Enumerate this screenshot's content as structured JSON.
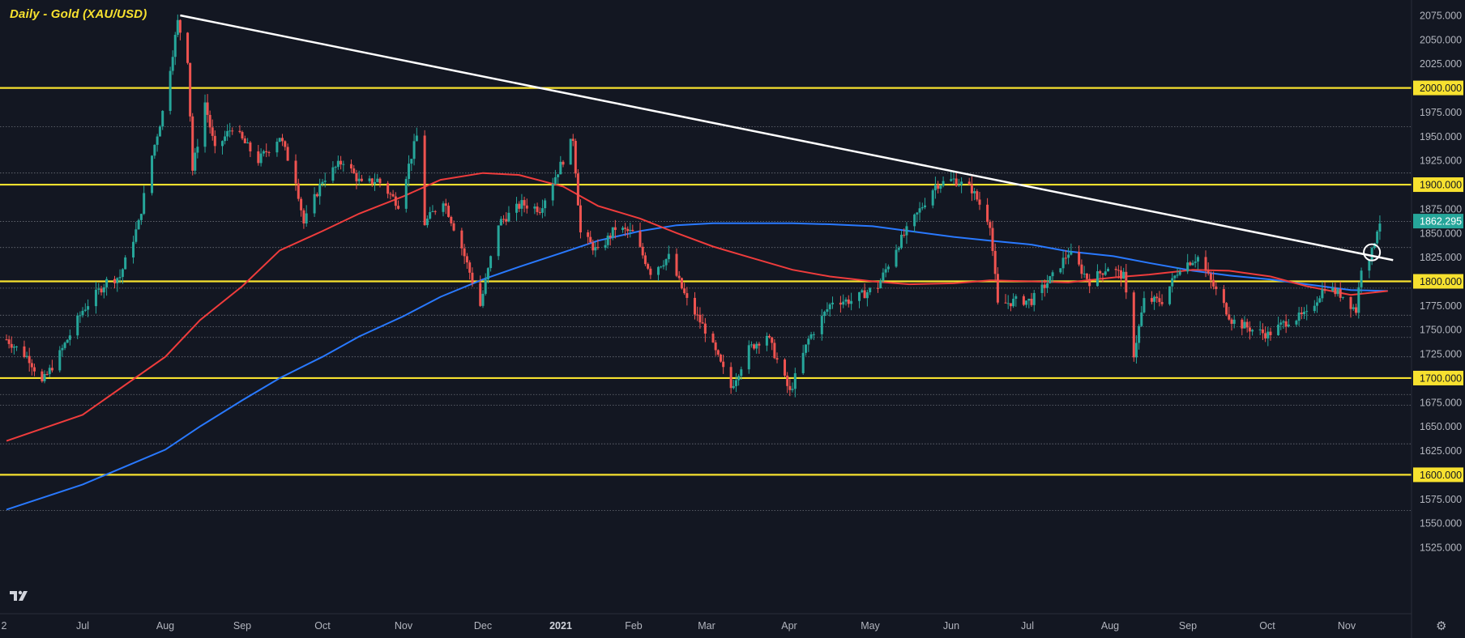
{
  "title": "Daily - Gold (XAU/USD)",
  "colors": {
    "background": "#131722",
    "up": "#26a69a",
    "down": "#ef5350",
    "ma_short": "#ef3c3c",
    "ma_long": "#2979ff",
    "support": "#f7e12f",
    "trendline": "#ffffff",
    "grid_dotted": "#b2b5be",
    "price_label": "#26a69a"
  },
  "icons": {
    "logo": "tradingview-logo-icon",
    "settings": "gear-icon"
  },
  "chart_data": {
    "type": "candlestick",
    "title": "Daily - Gold (XAU/USD)",
    "y_axis": {
      "ylim": [
        1512,
        2090
      ],
      "ticks": [
        "1525.000",
        "1550.000",
        "1575.000",
        "1600.000",
        "1625.000",
        "1650.000",
        "1675.000",
        "1700.000",
        "1725.000",
        "1750.000",
        "1775.000",
        "1800.000",
        "1825.000",
        "1850.000",
        "1875.000",
        "1900.000",
        "1925.000",
        "1950.000",
        "1975.000",
        "2000.000",
        "2025.000",
        "2050.000",
        "2075.000"
      ]
    },
    "x_axis": {
      "ticks": [
        "2",
        "Jul",
        "Aug",
        "Sep",
        "Oct",
        "Nov",
        "Dec",
        "2021",
        "Feb",
        "Mar",
        "Apr",
        "May",
        "Jun",
        "Jul",
        "Aug",
        "Sep",
        "Oct",
        "Nov"
      ]
    },
    "last_price": "1862.295",
    "horizontal_levels": [
      2000,
      1900,
      1800,
      1700,
      1600
    ],
    "dotted_levels": [
      1960,
      1912,
      1862,
      1835,
      1793,
      1765,
      1753,
      1742,
      1722,
      1683,
      1672,
      1632,
      1563
    ],
    "trendline": {
      "start": {
        "date": "2020-08-07",
        "price": 2075
      },
      "end": {
        "date": "2021-11-17",
        "price": 1822
      }
    },
    "breakout_marker": {
      "date": "2021-11-09",
      "price": 1830
    },
    "ma_short_path": [
      [
        "2020-06-01",
        1635
      ],
      [
        "2020-07-01",
        1662
      ],
      [
        "2020-08-01",
        1722
      ],
      [
        "2020-08-15",
        1760
      ],
      [
        "2020-09-01",
        1795
      ],
      [
        "2020-09-15",
        1832
      ],
      [
        "2020-10-01",
        1852
      ],
      [
        "2020-10-15",
        1870
      ],
      [
        "2020-11-01",
        1888
      ],
      [
        "2020-11-15",
        1905
      ],
      [
        "2020-12-01",
        1912
      ],
      [
        "2020-12-15",
        1910
      ],
      [
        "2021-01-01",
        1898
      ],
      [
        "2021-01-15",
        1878
      ],
      [
        "2021-02-01",
        1865
      ],
      [
        "2021-02-15",
        1850
      ],
      [
        "2021-03-01",
        1836
      ],
      [
        "2021-03-15",
        1825
      ],
      [
        "2021-04-01",
        1812
      ],
      [
        "2021-04-15",
        1805
      ],
      [
        "2021-05-01",
        1800
      ],
      [
        "2021-05-15",
        1797
      ],
      [
        "2021-06-01",
        1798
      ],
      [
        "2021-06-15",
        1801
      ],
      [
        "2021-07-01",
        1800
      ],
      [
        "2021-07-15",
        1799
      ],
      [
        "2021-08-01",
        1804
      ],
      [
        "2021-08-15",
        1807
      ],
      [
        "2021-09-01",
        1812
      ],
      [
        "2021-09-15",
        1811
      ],
      [
        "2021-10-01",
        1805
      ],
      [
        "2021-10-15",
        1795
      ],
      [
        "2021-11-01",
        1786
      ],
      [
        "2021-11-15",
        1790
      ]
    ],
    "ma_long_path": [
      [
        "2020-06-01",
        1564
      ],
      [
        "2020-07-01",
        1590
      ],
      [
        "2020-08-01",
        1626
      ],
      [
        "2020-08-15",
        1650
      ],
      [
        "2020-09-01",
        1677
      ],
      [
        "2020-09-15",
        1700
      ],
      [
        "2020-10-01",
        1722
      ],
      [
        "2020-10-15",
        1743
      ],
      [
        "2020-11-01",
        1764
      ],
      [
        "2020-11-15",
        1784
      ],
      [
        "2020-12-01",
        1802
      ],
      [
        "2020-12-15",
        1815
      ],
      [
        "2021-01-01",
        1830
      ],
      [
        "2021-01-15",
        1842
      ],
      [
        "2021-02-01",
        1852
      ],
      [
        "2021-02-15",
        1858
      ],
      [
        "2021-03-01",
        1860
      ],
      [
        "2021-03-15",
        1860
      ],
      [
        "2021-04-01",
        1860
      ],
      [
        "2021-04-15",
        1859
      ],
      [
        "2021-05-01",
        1857
      ],
      [
        "2021-05-15",
        1852
      ],
      [
        "2021-06-01",
        1846
      ],
      [
        "2021-06-15",
        1842
      ],
      [
        "2021-07-01",
        1838
      ],
      [
        "2021-07-15",
        1831
      ],
      [
        "2021-08-01",
        1826
      ],
      [
        "2021-08-15",
        1819
      ],
      [
        "2021-09-01",
        1811
      ],
      [
        "2021-09-15",
        1806
      ],
      [
        "2021-10-01",
        1802
      ],
      [
        "2021-10-15",
        1797
      ],
      [
        "2021-11-01",
        1791
      ],
      [
        "2021-11-15",
        1790
      ]
    ],
    "price_path": [
      [
        "2020-06-01",
        1740
      ],
      [
        "2020-06-10",
        1720
      ],
      [
        "2020-06-15",
        1695
      ],
      [
        "2020-06-22",
        1725
      ],
      [
        "2020-07-01",
        1770
      ],
      [
        "2020-07-10",
        1800
      ],
      [
        "2020-07-15",
        1805
      ],
      [
        "2020-07-22",
        1860
      ],
      [
        "2020-07-27",
        1930
      ],
      [
        "2020-07-31",
        1975
      ],
      [
        "2020-08-06",
        2068
      ],
      [
        "2020-08-10",
        2030
      ],
      [
        "2020-08-12",
        1915
      ],
      [
        "2020-08-17",
        1985
      ],
      [
        "2020-08-21",
        1935
      ],
      [
        "2020-08-28",
        1960
      ],
      [
        "2020-09-07",
        1925
      ],
      [
        "2020-09-15",
        1950
      ],
      [
        "2020-09-21",
        1905
      ],
      [
        "2020-09-24",
        1860
      ],
      [
        "2020-10-01",
        1905
      ],
      [
        "2020-10-09",
        1925
      ],
      [
        "2020-10-16",
        1900
      ],
      [
        "2020-10-22",
        1905
      ],
      [
        "2020-10-30",
        1880
      ],
      [
        "2020-11-06",
        1950
      ],
      [
        "2020-11-09",
        1860
      ],
      [
        "2020-11-16",
        1885
      ],
      [
        "2020-11-23",
        1835
      ],
      [
        "2020-11-30",
        1775
      ],
      [
        "2020-12-07",
        1860
      ],
      [
        "2020-12-16",
        1880
      ],
      [
        "2020-12-23",
        1875
      ],
      [
        "2021-01-05",
        1948
      ],
      [
        "2021-01-08",
        1850
      ],
      [
        "2021-01-15",
        1830
      ],
      [
        "2021-01-22",
        1855
      ],
      [
        "2021-01-29",
        1850
      ],
      [
        "2021-02-05",
        1810
      ],
      [
        "2021-02-12",
        1825
      ],
      [
        "2021-02-19",
        1780
      ],
      [
        "2021-02-26",
        1750
      ],
      [
        "2021-03-08",
        1690
      ],
      [
        "2021-03-15",
        1730
      ],
      [
        "2021-03-22",
        1745
      ],
      [
        "2021-03-31",
        1685
      ],
      [
        "2021-04-07",
        1740
      ],
      [
        "2021-04-16",
        1780
      ],
      [
        "2021-04-23",
        1780
      ],
      [
        "2021-05-03",
        1795
      ],
      [
        "2021-05-10",
        1835
      ],
      [
        "2021-05-17",
        1865
      ],
      [
        "2021-05-25",
        1900
      ],
      [
        "2021-06-01",
        1905
      ],
      [
        "2021-06-08",
        1895
      ],
      [
        "2021-06-15",
        1860
      ],
      [
        "2021-06-18",
        1775
      ],
      [
        "2021-06-25",
        1780
      ],
      [
        "2021-07-01",
        1780
      ],
      [
        "2021-07-09",
        1805
      ],
      [
        "2021-07-15",
        1830
      ],
      [
        "2021-07-23",
        1800
      ],
      [
        "2021-07-30",
        1815
      ],
      [
        "2021-08-05",
        1805
      ],
      [
        "2021-08-09",
        1725
      ],
      [
        "2021-08-13",
        1780
      ],
      [
        "2021-08-20",
        1780
      ],
      [
        "2021-08-27",
        1815
      ],
      [
        "2021-09-03",
        1825
      ],
      [
        "2021-09-10",
        1790
      ],
      [
        "2021-09-16",
        1760
      ],
      [
        "2021-09-24",
        1750
      ],
      [
        "2021-09-30",
        1745
      ],
      [
        "2021-10-08",
        1760
      ],
      [
        "2021-10-15",
        1765
      ],
      [
        "2021-10-22",
        1795
      ],
      [
        "2021-10-29",
        1785
      ],
      [
        "2021-11-03",
        1770
      ],
      [
        "2021-11-05",
        1815
      ],
      [
        "2021-11-09",
        1830
      ],
      [
        "2021-11-11",
        1855
      ],
      [
        "2021-11-12",
        1862
      ]
    ]
  }
}
